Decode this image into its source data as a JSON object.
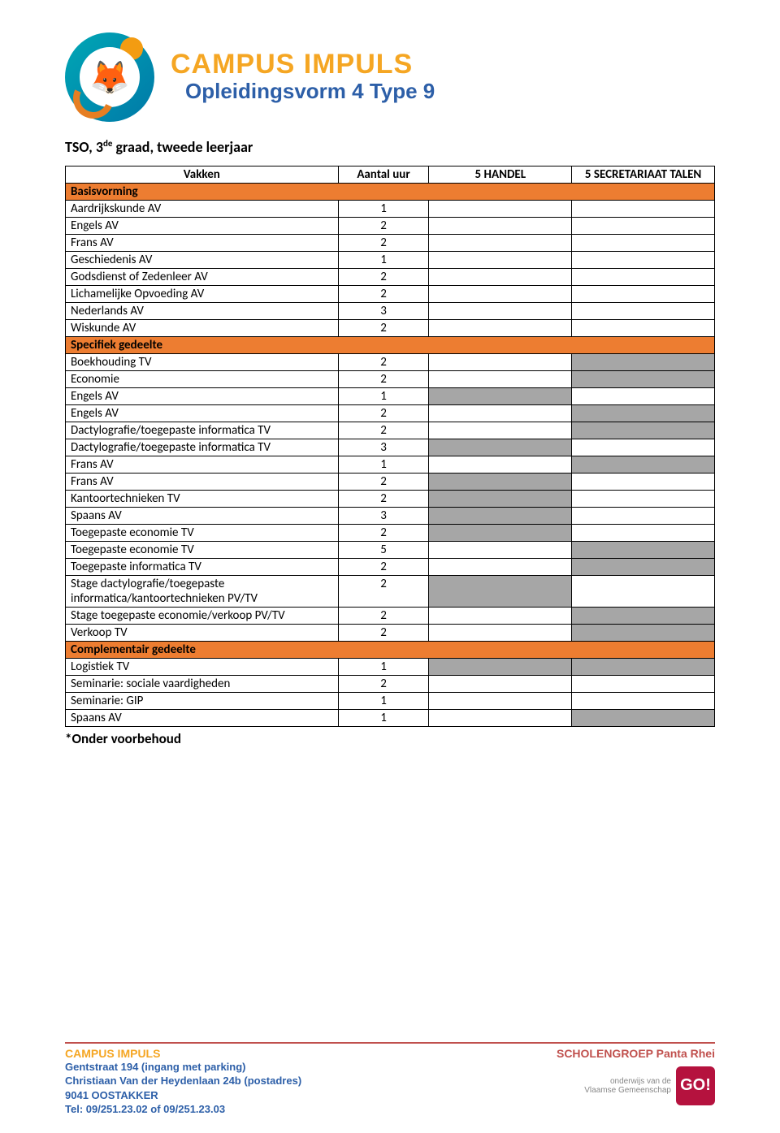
{
  "header": {
    "title": "CAMPUS IMPULS",
    "subtitle": "Opleidingsvorm 4  Type 9"
  },
  "section_title_prefix": "TSO, 3",
  "section_title_sup": "de",
  "section_title_suffix": " graad, tweede leerjaar",
  "table": {
    "columns": [
      "Vakken",
      "Aantal uur",
      "5 HANDEL",
      "5 SECRETARIAAT TALEN"
    ],
    "rows": [
      {
        "type": "section",
        "label": "Basisvorming"
      },
      {
        "type": "data",
        "label": "Aardrijkskunde AV",
        "hours": "1",
        "c3": "",
        "c4": ""
      },
      {
        "type": "data",
        "label": "Engels AV",
        "hours": "2",
        "c3": "",
        "c4": ""
      },
      {
        "type": "data",
        "label": "Frans AV",
        "hours": "2",
        "c3": "",
        "c4": ""
      },
      {
        "type": "data",
        "label": "Geschiedenis AV",
        "hours": "1",
        "c3": "",
        "c4": ""
      },
      {
        "type": "data",
        "label": "Godsdienst of Zedenleer AV",
        "hours": "2",
        "c3": "",
        "c4": ""
      },
      {
        "type": "data",
        "label": "Lichamelijke Opvoeding AV",
        "hours": "2",
        "c3": "",
        "c4": ""
      },
      {
        "type": "data",
        "label": "Nederlands AV",
        "hours": "3",
        "c3": "",
        "c4": ""
      },
      {
        "type": "data",
        "label": "Wiskunde AV",
        "hours": "2",
        "c3": "",
        "c4": ""
      },
      {
        "type": "section",
        "label": "Specifiek gedeelte"
      },
      {
        "type": "data",
        "label": "Boekhouding TV",
        "hours": "2",
        "c3": "",
        "c4": "grey"
      },
      {
        "type": "data",
        "label": "Economie",
        "hours": "2",
        "c3": "",
        "c4": "grey"
      },
      {
        "type": "data",
        "label": "Engels AV",
        "hours": "1",
        "c3": "grey",
        "c4": ""
      },
      {
        "type": "data",
        "label": "Engels AV",
        "hours": "2",
        "c3": "",
        "c4": "grey"
      },
      {
        "type": "data",
        "label": "Dactylografie/toegepaste informatica TV",
        "hours": "2",
        "c3": "",
        "c4": "grey"
      },
      {
        "type": "data",
        "label": "Dactylografie/toegepaste informatica TV",
        "hours": "3",
        "c3": "grey",
        "c4": ""
      },
      {
        "type": "data",
        "label": "Frans AV",
        "hours": "1",
        "c3": "",
        "c4": "grey"
      },
      {
        "type": "data",
        "label": "Frans AV",
        "hours": "2",
        "c3": "grey",
        "c4": ""
      },
      {
        "type": "data",
        "label": "Kantoortechnieken TV",
        "hours": "2",
        "c3": "grey",
        "c4": ""
      },
      {
        "type": "data",
        "label": "Spaans AV",
        "hours": "3",
        "c3": "grey",
        "c4": ""
      },
      {
        "type": "data",
        "label": "Toegepaste economie TV",
        "hours": "2",
        "c3": "grey",
        "c4": ""
      },
      {
        "type": "data",
        "label": "Toegepaste economie TV",
        "hours": "5",
        "c3": "",
        "c4": "grey"
      },
      {
        "type": "data",
        "label": "Toegepaste informatica TV",
        "hours": "2",
        "c3": "",
        "c4": "grey"
      },
      {
        "type": "data",
        "label": "Stage dactylografie/toegepaste informatica/kantoortechnieken PV/TV",
        "hours": "2",
        "c3": "grey",
        "c4": ""
      },
      {
        "type": "data",
        "label": "Stage toegepaste economie/verkoop PV/TV",
        "hours": "2",
        "c3": "",
        "c4": "grey"
      },
      {
        "type": "data",
        "label": "Verkoop TV",
        "hours": "2",
        "c3": "",
        "c4": "grey"
      },
      {
        "type": "section",
        "label": "Complementair gedeelte"
      },
      {
        "type": "data",
        "label": "Logistiek TV",
        "hours": "1",
        "c3": "grey",
        "c4": "grey"
      },
      {
        "type": "data",
        "label": "Seminarie: sociale vaardigheden",
        "hours": "2",
        "c3": "",
        "c4": ""
      },
      {
        "type": "data",
        "label": "Seminarie: GIP",
        "hours": "1",
        "c3": "",
        "c4": ""
      },
      {
        "type": "data",
        "label": "Spaans AV",
        "hours": "1",
        "c3": "",
        "c4": "grey"
      }
    ]
  },
  "footnote": "*Onder voorbehoud",
  "footer": {
    "left_title": "CAMPUS IMPULS",
    "left_lines": [
      "Gentstraat 194 (ingang met parking)",
      "Christiaan Van der Heydenlaan 24b (postadres)",
      "9041 OOSTAKKER",
      "Tel: 09/251.23.02 of 09/251.23.03"
    ],
    "right_title": "SCHOLENGROEP Panta Rhei",
    "go_text1": "onderwijs van de",
    "go_text2": "Vlaamse Gemeenschap",
    "go_badge": "GO!"
  },
  "colors": {
    "section_bg": "#ed7d31",
    "grey_bg": "#a6a6a6",
    "title_orange": "#f5a623",
    "title_blue": "#2d5fa8",
    "footer_red": "#c0504d"
  }
}
